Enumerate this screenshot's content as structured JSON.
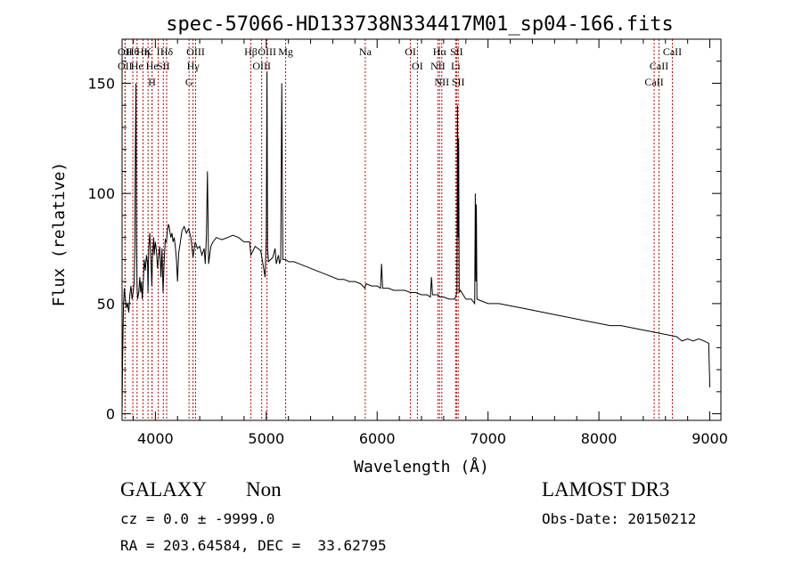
{
  "chart_data": {
    "type": "line",
    "title": "spec-57066-HD133738N334417M01_sp04-166.fits",
    "xlabel": "Wavelength (Å)",
    "ylabel": "Flux (relative)",
    "xlim": [
      3700,
      9100
    ],
    "ylim": [
      -3,
      170
    ],
    "x_ticks": [
      4000,
      5000,
      6000,
      7000,
      8000,
      9000
    ],
    "y_ticks": [
      0,
      50,
      100,
      150
    ],
    "grid": false,
    "series": [
      {
        "points": [
          [
            3700,
            0
          ],
          [
            3705,
            25
          ],
          [
            3712,
            48
          ],
          [
            3720,
            57
          ],
          [
            3730,
            52
          ],
          [
            3740,
            48
          ],
          [
            3750,
            50
          ],
          [
            3760,
            46
          ],
          [
            3770,
            54
          ],
          [
            3780,
            58
          ],
          [
            3790,
            52
          ],
          [
            3800,
            55
          ],
          [
            3810,
            60
          ],
          [
            3815,
            75
          ],
          [
            3820,
            118
          ],
          [
            3825,
            150
          ],
          [
            3830,
            80
          ],
          [
            3835,
            58
          ],
          [
            3840,
            52
          ],
          [
            3850,
            55
          ],
          [
            3860,
            62
          ],
          [
            3868,
            55
          ],
          [
            3875,
            60
          ],
          [
            3882,
            52
          ],
          [
            3890,
            58
          ],
          [
            3900,
            70
          ],
          [
            3910,
            65
          ],
          [
            3920,
            72
          ],
          [
            3930,
            68
          ],
          [
            3934,
            55
          ],
          [
            3940,
            75
          ],
          [
            3950,
            82
          ],
          [
            3960,
            70
          ],
          [
            3968,
            58
          ],
          [
            3975,
            72
          ],
          [
            3985,
            80
          ],
          [
            3990,
            72
          ],
          [
            4000,
            78
          ],
          [
            4010,
            74
          ],
          [
            4020,
            66
          ],
          [
            4030,
            72
          ],
          [
            4040,
            76
          ],
          [
            4050,
            62
          ],
          [
            4060,
            75
          ],
          [
            4070,
            55
          ],
          [
            4080,
            70
          ],
          [
            4090,
            79
          ],
          [
            4100,
            78
          ],
          [
            4110,
            84
          ],
          [
            4120,
            86
          ],
          [
            4130,
            83
          ],
          [
            4140,
            80
          ],
          [
            4150,
            82
          ],
          [
            4160,
            78
          ],
          [
            4170,
            80
          ],
          [
            4180,
            76
          ],
          [
            4190,
            70
          ],
          [
            4200,
            60
          ],
          [
            4210,
            73
          ],
          [
            4220,
            76
          ],
          [
            4240,
            83
          ],
          [
            4260,
            85
          ],
          [
            4280,
            82
          ],
          [
            4300,
            84
          ],
          [
            4320,
            80
          ],
          [
            4340,
            71
          ],
          [
            4360,
            78
          ],
          [
            4380,
            75
          ],
          [
            4400,
            76
          ],
          [
            4420,
            72
          ],
          [
            4440,
            75
          ],
          [
            4450,
            68
          ],
          [
            4460,
            80
          ],
          [
            4470,
            110
          ],
          [
            4480,
            68
          ],
          [
            4500,
            76
          ],
          [
            4520,
            78
          ],
          [
            4550,
            80
          ],
          [
            4600,
            79
          ],
          [
            4650,
            80
          ],
          [
            4700,
            81
          ],
          [
            4750,
            80
          ],
          [
            4800,
            78
          ],
          [
            4850,
            78
          ],
          [
            4861,
            72
          ],
          [
            4900,
            76
          ],
          [
            4950,
            74
          ],
          [
            4980,
            65
          ],
          [
            4990,
            62
          ],
          [
            5000,
            80
          ],
          [
            5007,
            155
          ],
          [
            5012,
            75
          ],
          [
            5020,
            69
          ],
          [
            5040,
            70
          ],
          [
            5060,
            71
          ],
          [
            5080,
            75
          ],
          [
            5090,
            68
          ],
          [
            5100,
            70
          ],
          [
            5110,
            72
          ],
          [
            5120,
            68
          ],
          [
            5130,
            70
          ],
          [
            5140,
            150
          ],
          [
            5150,
            70
          ],
          [
            5175,
            70
          ],
          [
            5200,
            69
          ],
          [
            5250,
            69
          ],
          [
            5300,
            68
          ],
          [
            5350,
            67
          ],
          [
            5400,
            66
          ],
          [
            5450,
            65
          ],
          [
            5500,
            64
          ],
          [
            5550,
            63
          ],
          [
            5600,
            62
          ],
          [
            5650,
            61
          ],
          [
            5700,
            61
          ],
          [
            5750,
            60
          ],
          [
            5800,
            60
          ],
          [
            5850,
            59
          ],
          [
            5890,
            57
          ],
          [
            5900,
            59
          ],
          [
            5950,
            58
          ],
          [
            6000,
            58
          ],
          [
            6030,
            57
          ],
          [
            6040,
            68
          ],
          [
            6050,
            57
          ],
          [
            6100,
            57
          ],
          [
            6150,
            56
          ],
          [
            6200,
            56
          ],
          [
            6250,
            56
          ],
          [
            6300,
            55
          ],
          [
            6350,
            55
          ],
          [
            6400,
            54
          ],
          [
            6450,
            54
          ],
          [
            6480,
            53
          ],
          [
            6490,
            62
          ],
          [
            6500,
            54
          ],
          [
            6550,
            54
          ],
          [
            6563,
            53
          ],
          [
            6600,
            53
          ],
          [
            6650,
            52
          ],
          [
            6700,
            52
          ],
          [
            6720,
            55
          ],
          [
            6725,
            140
          ],
          [
            6730,
            80
          ],
          [
            6735,
            125
          ],
          [
            6740,
            55
          ],
          [
            6750,
            56
          ],
          [
            6800,
            52
          ],
          [
            6850,
            52
          ],
          [
            6880,
            50
          ],
          [
            6885,
            100
          ],
          [
            6890,
            60
          ],
          [
            6895,
            95
          ],
          [
            6900,
            52
          ],
          [
            6950,
            51
          ],
          [
            7000,
            50
          ],
          [
            7100,
            50
          ],
          [
            7200,
            49
          ],
          [
            7300,
            48
          ],
          [
            7400,
            47
          ],
          [
            7500,
            46
          ],
          [
            7600,
            45
          ],
          [
            7700,
            44
          ],
          [
            7800,
            43
          ],
          [
            7900,
            42
          ],
          [
            8000,
            41
          ],
          [
            8100,
            40
          ],
          [
            8200,
            40
          ],
          [
            8300,
            39
          ],
          [
            8400,
            38
          ],
          [
            8500,
            37
          ],
          [
            8600,
            36
          ],
          [
            8700,
            35
          ],
          [
            8750,
            33
          ],
          [
            8800,
            34
          ],
          [
            8850,
            33
          ],
          [
            8900,
            34
          ],
          [
            8950,
            33
          ],
          [
            8990,
            32
          ],
          [
            9000,
            12
          ]
        ]
      }
    ],
    "lines": [
      {
        "labels": [
          "OII",
          "OII"
        ],
        "x": [
          3727,
          3727
        ]
      },
      {
        "labels": [
          "Hθ",
          "He"
        ],
        "x": [
          3797,
          3835
        ]
      },
      {
        "labels": [
          "Hη"
        ],
        "x": [
          3889
        ]
      },
      {
        "labels": [
          "K",
          "He",
          "H"
        ],
        "x": [
          3934,
          3970,
          3970
        ]
      },
      {
        "labels": [
          "I"
        ],
        "x": [
          4026
        ]
      },
      {
        "labels": [
          "Hδ",
          "SII"
        ],
        "x": [
          4102,
          4072
        ]
      },
      {
        "labels": [
          "OIII",
          "Hγ",
          "G"
        ],
        "x": [
          4363,
          4340,
          4304
        ]
      },
      {
        "labels": [
          "Hβ"
        ],
        "x": [
          4861
        ]
      },
      {
        "labels": [
          "OIII",
          "OIII"
        ],
        "x": [
          5007,
          4959
        ]
      },
      {
        "labels": [
          "Mg"
        ],
        "x": [
          5175
        ]
      },
      {
        "labels": [
          "Na"
        ],
        "x": [
          5893
        ]
      },
      {
        "labels": [
          "OI",
          "OI"
        ],
        "x": [
          6300,
          6363
        ]
      },
      {
        "labels": [
          "Hα",
          "NII",
          "NII"
        ],
        "x": [
          6563,
          6548,
          6583
        ]
      },
      {
        "labels": [
          "SII",
          "Li",
          "SII"
        ],
        "x": [
          6716,
          6708,
          6731
        ]
      },
      {
        "labels": [
          "CaII",
          "CaII",
          "CaII"
        ],
        "x": [
          8662,
          8542,
          8498
        ]
      }
    ]
  },
  "info": {
    "class": "GALAXY",
    "subclass": "Non",
    "survey": "LAMOST DR3",
    "cz": "cz = 0.0 ± -9999.0",
    "obs_date": "Obs-Date: 20150212",
    "coords": "RA = 203.64584, DEC =  33.62795"
  },
  "colors": {
    "line_marker": "#cc0000",
    "spectrum": "#000000",
    "axes": "#000000"
  }
}
